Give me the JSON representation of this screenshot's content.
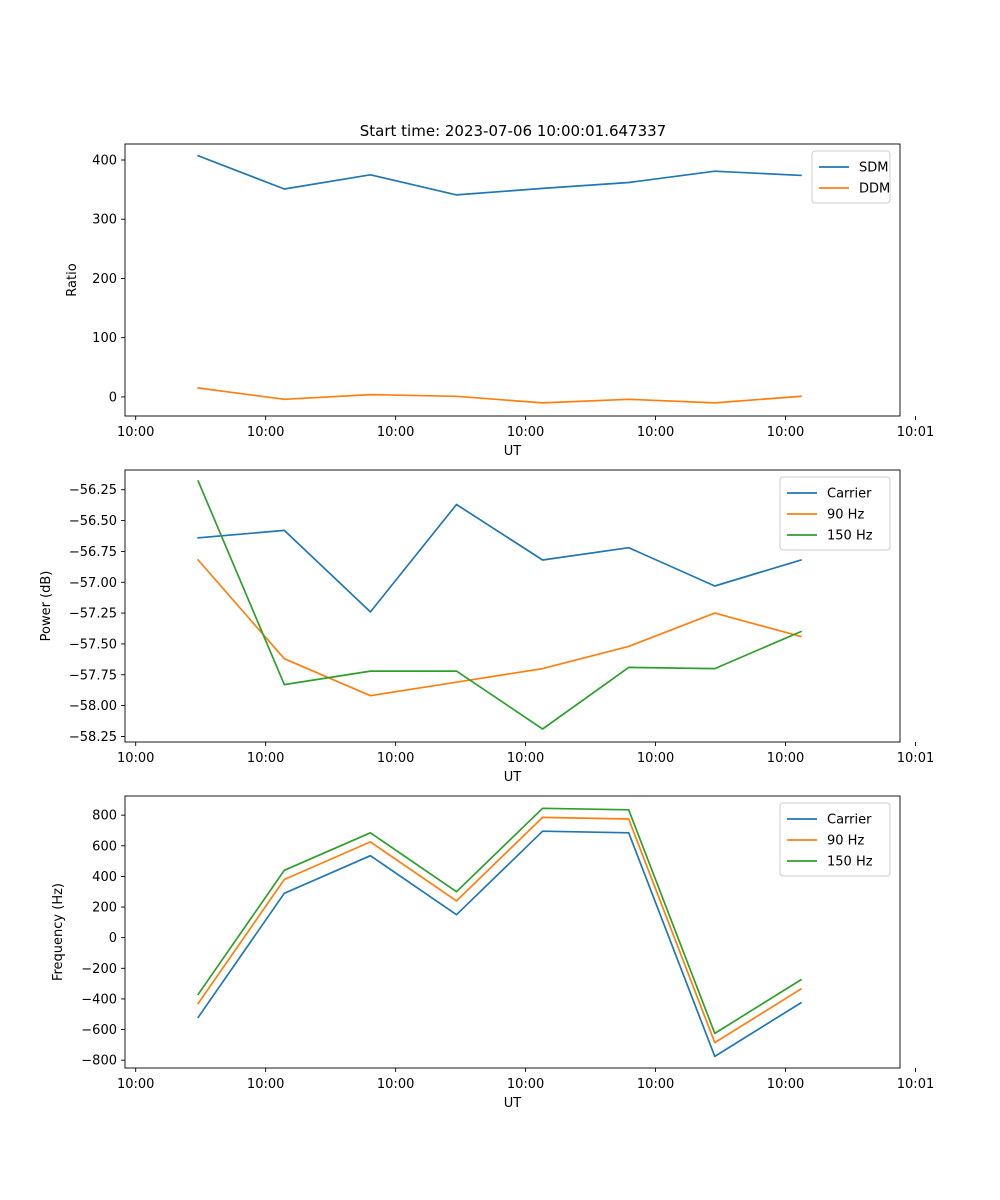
{
  "figure": {
    "title": "Start time: 2023-07-06 10:00:01.647337"
  },
  "chart_data": [
    {
      "type": "line",
      "name": "ratio",
      "title": "Start time: 2023-07-06 10:00:01.647337",
      "xlabel": "UT",
      "ylabel": "Ratio",
      "x": [
        0.0944,
        0.2055,
        0.3166,
        0.4277,
        0.5388,
        0.6499,
        0.761,
        0.8721
      ],
      "xlim": [
        0,
        1.0
      ],
      "xticks": [
        0.0138,
        0.1815,
        0.3492,
        0.5169,
        0.6846,
        0.8523,
        1.02
      ],
      "xtick_labels": [
        "10:00",
        "10:00",
        "10:00",
        "10:00",
        "10:00",
        "10:00",
        "10:01"
      ],
      "ylim": [
        -32.2,
        427
      ],
      "yticks": [
        0,
        100,
        200,
        300,
        400
      ],
      "ytick_labels": [
        "0",
        "100",
        "200",
        "300",
        "400"
      ],
      "legend": "top-right",
      "series": [
        {
          "name": "SDM",
          "color": "#1f77b4",
          "values": [
            407,
            351,
            375,
            341,
            352,
            362,
            381,
            374
          ]
        },
        {
          "name": "DDM",
          "color": "#ff7f0e",
          "values": [
            15,
            -4,
            4,
            1,
            -10,
            -4,
            -10,
            1
          ]
        }
      ]
    },
    {
      "type": "line",
      "name": "power",
      "xlabel": "UT",
      "ylabel": "Power (dB)",
      "x": [
        0.0944,
        0.2055,
        0.3166,
        0.4277,
        0.5388,
        0.6499,
        0.761,
        0.8721
      ],
      "xlim": [
        0,
        1.0
      ],
      "xticks": [
        0.0138,
        0.1815,
        0.3492,
        0.5169,
        0.6846,
        0.8523,
        1.02
      ],
      "xtick_labels": [
        "10:00",
        "10:00",
        "10:00",
        "10:00",
        "10:00",
        "10:00",
        "10:01"
      ],
      "ylim": [
        -58.295,
        -56.09
      ],
      "yticks": [
        -58.25,
        -58.0,
        -57.75,
        -57.5,
        -57.25,
        -57.0,
        -56.75,
        -56.5,
        -56.25
      ],
      "ytick_labels": [
        "−58.25",
        "−58.00",
        "−57.75",
        "−57.50",
        "−57.25",
        "−57.00",
        "−56.75",
        "−56.50",
        "−56.25"
      ],
      "legend": "top-right",
      "series": [
        {
          "name": "Carrier",
          "color": "#1f77b4",
          "values": [
            -56.64,
            -56.58,
            -57.24,
            -56.37,
            -56.82,
            -56.72,
            -57.03,
            -56.82
          ]
        },
        {
          "name": "90 Hz",
          "color": "#ff7f0e",
          "values": [
            -56.82,
            -57.62,
            -57.92,
            -57.81,
            -57.7,
            -57.52,
            -57.25,
            -57.44
          ]
        },
        {
          "name": "150 Hz",
          "color": "#2ca02c",
          "values": [
            -56.18,
            -57.83,
            -57.72,
            -57.72,
            -58.19,
            -57.69,
            -57.7,
            -57.4
          ]
        }
      ]
    },
    {
      "type": "line",
      "name": "frequency",
      "xlabel": "UT",
      "ylabel": "Frequency (Hz)",
      "x": [
        0.0944,
        0.2055,
        0.3166,
        0.4277,
        0.5388,
        0.6499,
        0.761,
        0.8721
      ],
      "xlim": [
        0,
        1.0
      ],
      "xticks": [
        0.0138,
        0.1815,
        0.3492,
        0.5169,
        0.6846,
        0.8523,
        1.02
      ],
      "xtick_labels": [
        "10:00",
        "10:00",
        "10:00",
        "10:00",
        "10:00",
        "10:00",
        "10:01"
      ],
      "ylim": [
        -851,
        925
      ],
      "yticks": [
        -800,
        -600,
        -400,
        -200,
        0,
        200,
        400,
        600,
        800
      ],
      "ytick_labels": [
        "−800",
        "−600",
        "−400",
        "−200",
        "0",
        "200",
        "400",
        "600",
        "800"
      ],
      "legend": "top-right",
      "series": [
        {
          "name": "Carrier",
          "color": "#1f77b4",
          "values": [
            -520,
            290,
            535,
            150,
            695,
            685,
            -775,
            -425
          ]
        },
        {
          "name": "90 Hz",
          "color": "#ff7f0e",
          "values": [
            -430,
            380,
            625,
            240,
            785,
            775,
            -685,
            -335
          ]
        },
        {
          "name": "150 Hz",
          "color": "#2ca02c",
          "values": [
            -370,
            440,
            685,
            300,
            845,
            835,
            -625,
            -275
          ]
        }
      ]
    }
  ]
}
